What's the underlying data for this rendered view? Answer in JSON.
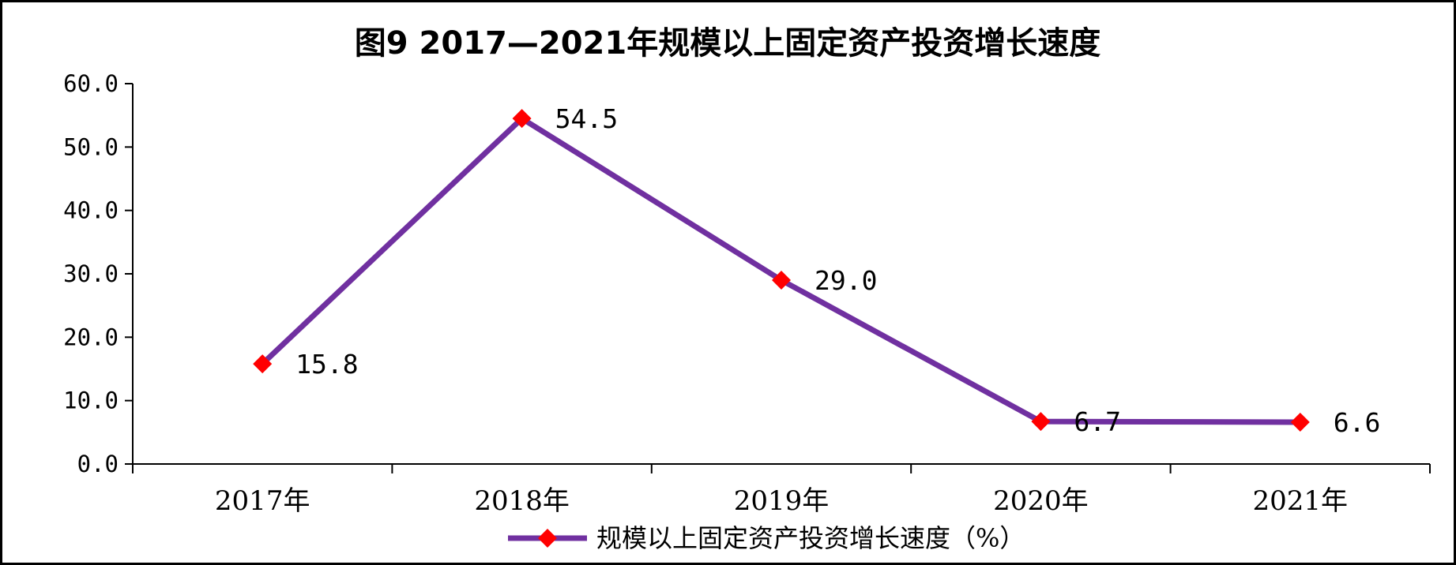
{
  "chart_data": {
    "type": "line",
    "title": "图9  2017—2021年规模以上固定资产投资增长速度",
    "categories": [
      "2017年",
      "2018年",
      "2019年",
      "2020年",
      "2021年"
    ],
    "series": [
      {
        "name": "规模以上固定资产投资增长速度（%）",
        "values": [
          15.8,
          54.5,
          29.0,
          6.7,
          6.6
        ],
        "labels": [
          "15.8",
          "54.5",
          "29.0",
          "6.7",
          "6.6"
        ],
        "color": "#7030A0",
        "marker_color": "#FF0000",
        "marker": "diamond"
      }
    ],
    "ylim": [
      0,
      60
    ],
    "yticks": [
      "0.0",
      "10.0",
      "20.0",
      "30.0",
      "40.0",
      "50.0",
      "60.0"
    ],
    "xlabel": "",
    "ylabel": "",
    "grid": false,
    "legend": "bottom"
  }
}
